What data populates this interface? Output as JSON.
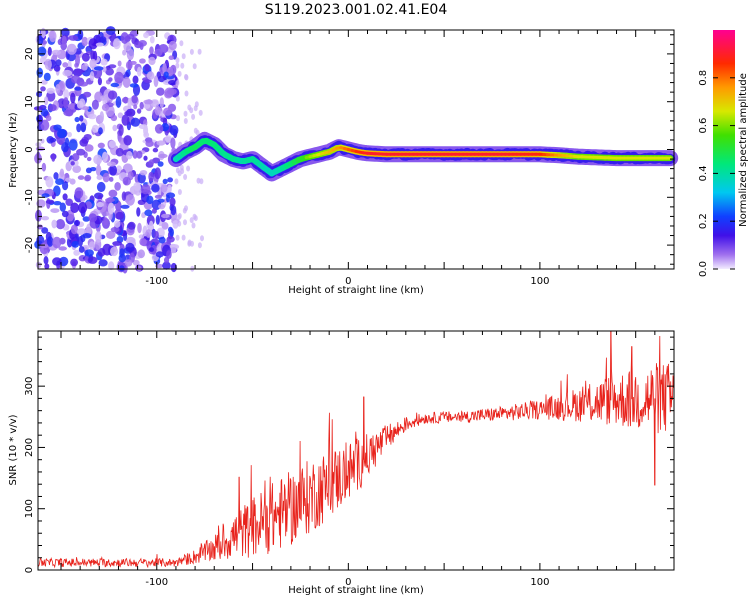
{
  "figure_title": "S119.2023.001.02.41.E04",
  "chart_data": [
    {
      "type": "heatmap",
      "title": "",
      "xlabel": "Height of straight line (km)",
      "ylabel": "Frequency (Hz)",
      "xlim": [
        -162,
        170
      ],
      "ylim": [
        -25,
        25
      ],
      "xticks": [
        -100,
        0,
        100
      ],
      "yticks": [
        -20,
        -10,
        0,
        10,
        20
      ],
      "grid": false,
      "noise_region_x": [
        -162,
        -90
      ],
      "ridge": {
        "x": [
          -90,
          -85,
          -80,
          -75,
          -70,
          -65,
          -60,
          -55,
          -50,
          -45,
          -40,
          -35,
          -30,
          -25,
          -20,
          -15,
          -10,
          -5,
          0,
          5,
          10,
          20,
          40,
          60,
          80,
          100,
          110,
          120,
          140,
          160,
          168
        ],
        "freq": [
          -2,
          -0.5,
          0.5,
          2,
          1,
          -1,
          -2,
          -2.5,
          -2,
          -3.5,
          -5,
          -4,
          -3,
          -2,
          -1.5,
          -1,
          -0.5,
          0.5,
          0,
          -0.5,
          -0.8,
          -1,
          -1,
          -1,
          -1,
          -1,
          -1.2,
          -1.5,
          -1.8,
          -1.8,
          -1.8
        ],
        "amp": [
          0.3,
          0.4,
          0.5,
          0.45,
          0.45,
          0.4,
          0.4,
          0.35,
          0.4,
          0.35,
          0.3,
          0.35,
          0.45,
          0.55,
          0.65,
          0.7,
          0.75,
          0.8,
          0.85,
          0.9,
          0.95,
          0.95,
          0.95,
          0.95,
          0.95,
          0.92,
          0.8,
          0.7,
          0.7,
          0.7,
          0.7
        ]
      },
      "colorbar": {
        "label": "Normalized spectral amplitude",
        "range": [
          0,
          1
        ],
        "ticks": [
          "0.0",
          "0.2",
          "0.4",
          "0.6",
          "0.8"
        ]
      }
    },
    {
      "type": "line",
      "title": "",
      "xlabel": "Height of straight line (km)",
      "ylabel": "SNR (10 * v/v)",
      "xlim": [
        -162,
        170
      ],
      "ylim": [
        0,
        390
      ],
      "xticks": [
        -100,
        0,
        100
      ],
      "yticks": [
        0,
        100,
        200,
        300
      ],
      "grid": false,
      "series": [
        {
          "color": "#e8221b",
          "envelope": {
            "x": [
              -162,
              -90,
              -80,
              -70,
              -60,
              -50,
              -40,
              -30,
              -20,
              -10,
              0,
              10,
              20,
              30,
              40,
              60,
              80,
              100,
              120,
              140,
              160,
              170
            ],
            "mean": [
              12,
              12,
              22,
              35,
              55,
              70,
              85,
              100,
              120,
              140,
              160,
              185,
              215,
              238,
              248,
              250,
              255,
              262,
              270,
              278,
              280,
              280
            ],
            "spread": [
              7,
              7,
              12,
              22,
              38,
              50,
              58,
              62,
              62,
              58,
              50,
              38,
              22,
              12,
              9,
              10,
              12,
              16,
              28,
              45,
              60,
              60
            ]
          },
          "spikes": [
            {
              "x": -57,
              "y": 152
            },
            {
              "x": 8,
              "y": 283
            },
            {
              "x": 137,
              "y": 390
            },
            {
              "x": 148,
              "y": 365
            },
            {
              "x": 160,
              "y": 138
            }
          ]
        }
      ]
    }
  ]
}
